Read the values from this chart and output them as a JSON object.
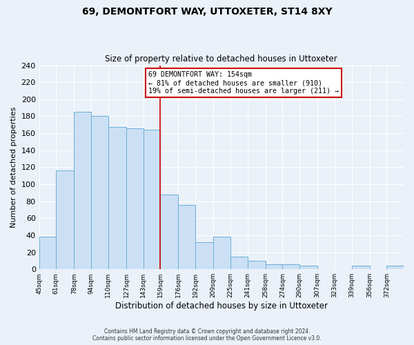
{
  "title": "69, DEMONTFORT WAY, UTTOXETER, ST14 8XY",
  "subtitle": "Size of property relative to detached houses in Uttoxeter",
  "xlabel": "Distribution of detached houses by size in Uttoxeter",
  "ylabel": "Number of detached properties",
  "footer_line1": "Contains HM Land Registry data © Crown copyright and database right 2024.",
  "footer_line2": "Contains public sector information licensed under the Open Government Licence v3.0.",
  "bin_labels": [
    "45sqm",
    "61sqm",
    "78sqm",
    "94sqm",
    "110sqm",
    "127sqm",
    "143sqm",
    "159sqm",
    "176sqm",
    "192sqm",
    "209sqm",
    "225sqm",
    "241sqm",
    "258sqm",
    "274sqm",
    "290sqm",
    "307sqm",
    "323sqm",
    "339sqm",
    "356sqm",
    "372sqm"
  ],
  "bar_heights": [
    38,
    116,
    185,
    180,
    167,
    166,
    164,
    88,
    76,
    32,
    38,
    15,
    10,
    6,
    6,
    4,
    0,
    0,
    4,
    0,
    4
  ],
  "bar_color": "#cce0f5",
  "bar_edge_color": "#6aaed6",
  "annotation_box_text_line1": "69 DEMONTFORT WAY: 154sqm",
  "annotation_box_text_line2": "← 81% of detached houses are smaller (910)",
  "annotation_box_text_line3": "19% of semi-detached houses are larger (211) →",
  "annotation_box_color": "#ffffff",
  "annotation_box_edge_color": "#cc0000",
  "vline_color": "#cc0000",
  "ylim": [
    0,
    240
  ],
  "yticks": [
    0,
    20,
    40,
    60,
    80,
    100,
    120,
    140,
    160,
    180,
    200,
    220,
    240
  ],
  "bin_edges": [
    45,
    61,
    78,
    94,
    110,
    127,
    143,
    159,
    176,
    192,
    209,
    225,
    241,
    258,
    274,
    290,
    307,
    323,
    339,
    356,
    372,
    388
  ],
  "vline_bin_index": 7,
  "bg_color": "#eaf1f8",
  "plot_bg_color": "#eaf1f8",
  "grid_color": "#ffffff",
  "figsize": [
    6.0,
    5.0
  ],
  "dpi": 100
}
